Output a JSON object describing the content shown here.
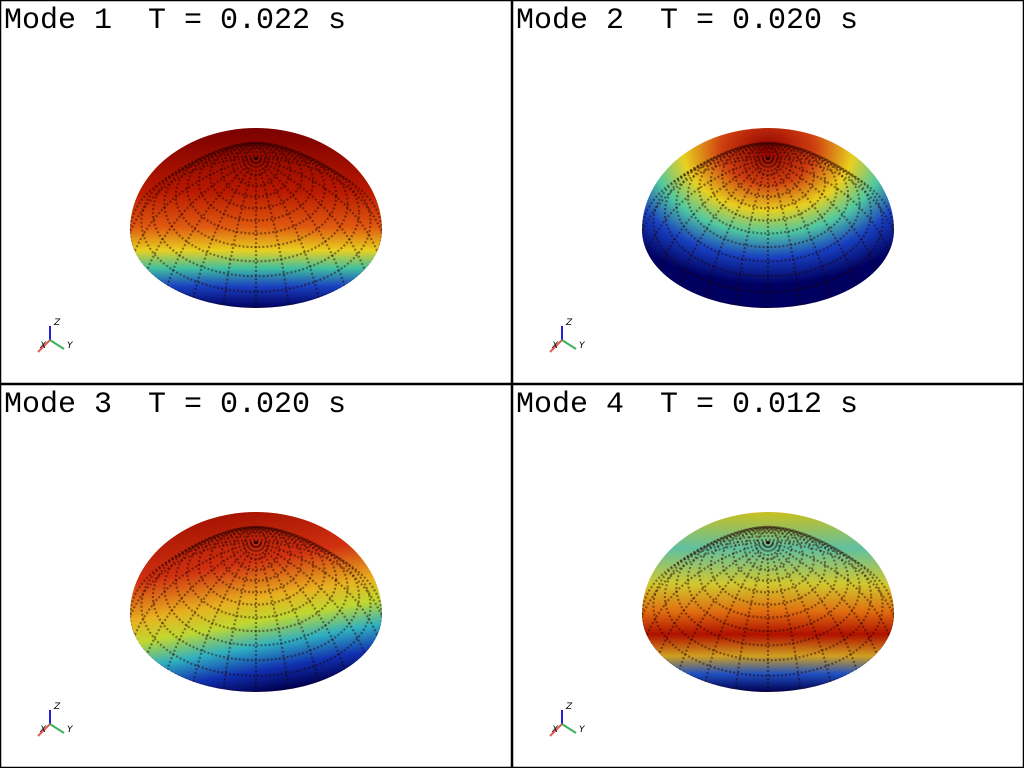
{
  "panels": [
    {
      "title": "Mode 1  T = 0.022 s",
      "coloring": "vertical"
    },
    {
      "title": "Mode 2  T = 0.020 s",
      "coloring": "radial"
    },
    {
      "title": "Mode 3  T = 0.020 s",
      "coloring": "tilted"
    },
    {
      "title": "Mode 4  T = 0.012 s",
      "coloring": "banded"
    }
  ],
  "axis_labels": {
    "x": "X",
    "y": "Y",
    "z": "Z"
  }
}
